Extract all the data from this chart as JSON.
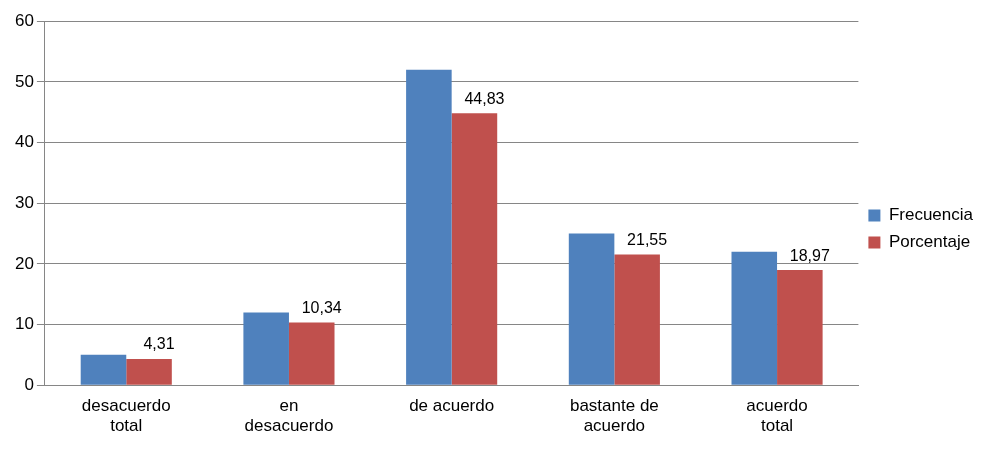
{
  "chart_data": {
    "type": "bar",
    "categories": [
      "desacuerdo total",
      "en desacuerdo",
      "de acuerdo",
      "bastante de acuerdo",
      "acuerdo total"
    ],
    "series": [
      {
        "name": "Frecuencia",
        "color": "#4f81bd",
        "values": [
          5,
          12,
          52,
          25,
          22
        ]
      },
      {
        "name": "Porcentaje",
        "color": "#c0504d",
        "values": [
          4.31,
          10.34,
          44.83,
          21.55,
          18.97
        ],
        "value_labels": [
          "4,31",
          "10,34",
          "44,83",
          "21,55",
          "18,97"
        ]
      }
    ],
    "ylim": [
      0,
      60
    ],
    "yticks": [
      0,
      10,
      20,
      30,
      40,
      50,
      60
    ],
    "grid": "y",
    "legend": "right"
  }
}
